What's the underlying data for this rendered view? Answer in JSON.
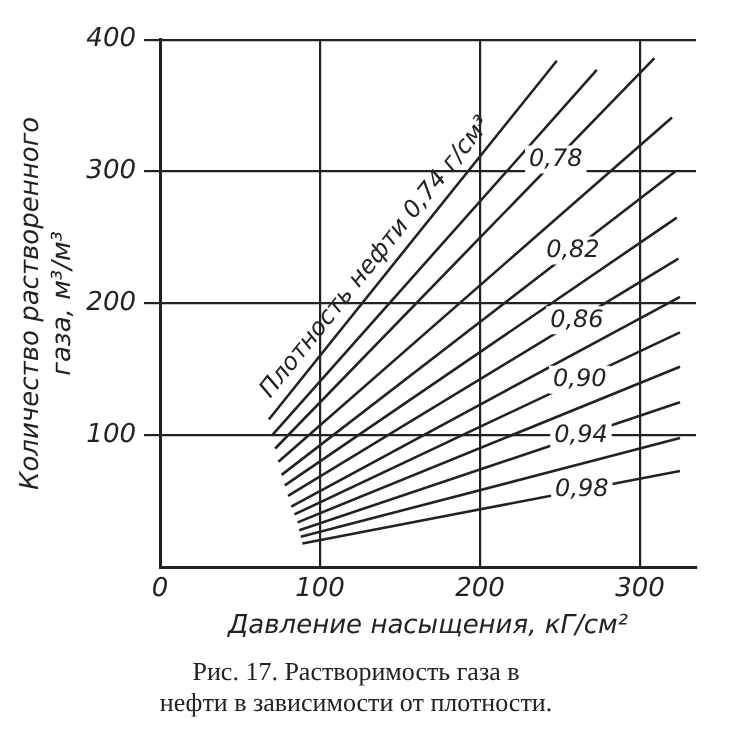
{
  "chart_data": {
    "type": "line",
    "title": "Рис. 17. Растворимость газа в нефти в зависимости от плотности.",
    "xlabel": "Давление насыщения, кГ/см²",
    "ylabel": "Количество растворенного газа, м³/м³",
    "xlim": [
      0,
      335
    ],
    "ylim": [
      0,
      400
    ],
    "xticks": [
      0,
      100,
      200,
      300
    ],
    "yticks": [
      100,
      200,
      300,
      400
    ],
    "grid": true,
    "legend": false,
    "marker": "none",
    "line_style": "solid",
    "series": [
      {
        "name": "Плотность нефти 0,74 г/см³",
        "color": "#222222",
        "x": [
          68,
          248
        ],
        "values": [
          112,
          384
        ]
      },
      {
        "color": "#222222",
        "x": [
          70,
          273
        ],
        "values": [
          100,
          377
        ]
      },
      {
        "name": "0,78",
        "color": "#222222",
        "x": [
          72,
          309
        ],
        "values": [
          90,
          386
        ]
      },
      {
        "color": "#222222",
        "x": [
          74,
          320
        ],
        "values": [
          80,
          341
        ]
      },
      {
        "name": "0,82",
        "color": "#222222",
        "x": [
          76,
          322
        ],
        "values": [
          70,
          300
        ]
      },
      {
        "color": "#222222",
        "x": [
          78,
          323
        ],
        "values": [
          62,
          265
        ]
      },
      {
        "name": "0,86",
        "color": "#222222",
        "x": [
          80,
          324
        ],
        "values": [
          54,
          234
        ]
      },
      {
        "color": "#222222",
        "x": [
          82,
          325
        ],
        "values": [
          46,
          205
        ]
      },
      {
        "name": "0,90",
        "color": "#222222",
        "x": [
          84,
          325
        ],
        "values": [
          40,
          178
        ]
      },
      {
        "color": "#222222",
        "x": [
          86,
          325
        ],
        "values": [
          34,
          152
        ]
      },
      {
        "name": "0,94",
        "color": "#222222",
        "x": [
          87,
          325
        ],
        "values": [
          28,
          125
        ]
      },
      {
        "color": "#222222",
        "x": [
          88,
          325
        ],
        "values": [
          23,
          98
        ]
      },
      {
        "name": "0,98",
        "color": "#222222",
        "x": [
          89,
          325
        ],
        "values": [
          18,
          73
        ]
      }
    ]
  }
}
